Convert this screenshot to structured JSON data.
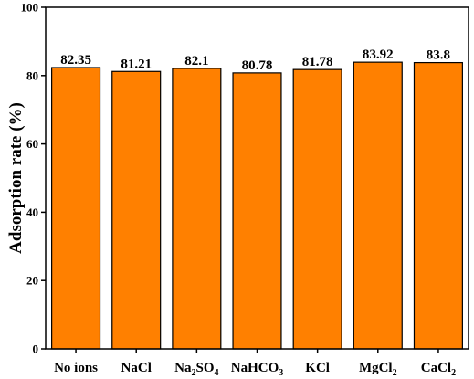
{
  "chart_data": {
    "type": "bar",
    "categories": [
      {
        "base": "No ions",
        "parts": [
          [
            "No ions",
            ""
          ]
        ]
      },
      {
        "base": "NaCl",
        "parts": [
          [
            "NaCl",
            ""
          ]
        ]
      },
      {
        "base": "Na2SO4",
        "parts": [
          [
            "Na",
            ""
          ],
          [
            "2",
            "sub"
          ],
          [
            "SO",
            ""
          ],
          [
            "4",
            "sub"
          ]
        ]
      },
      {
        "base": "NaHCO3",
        "parts": [
          [
            "NaHCO",
            ""
          ],
          [
            "3",
            "sub"
          ]
        ]
      },
      {
        "base": "KCl",
        "parts": [
          [
            "KCl",
            ""
          ]
        ]
      },
      {
        "base": "MgCl2",
        "parts": [
          [
            "MgCl",
            ""
          ],
          [
            "2",
            "sub"
          ]
        ]
      },
      {
        "base": "CaCl2",
        "parts": [
          [
            "CaCl",
            ""
          ],
          [
            "2",
            "sub"
          ]
        ]
      }
    ],
    "values": [
      82.35,
      81.21,
      82.1,
      80.78,
      81.78,
      83.92,
      83.8
    ],
    "value_labels": [
      "82.35",
      "81.21",
      "82.1",
      "80.78",
      "81.78",
      "83.92",
      "83.8"
    ],
    "ylabel": "Adsorption rate (%)",
    "xlabel": "",
    "ylim": [
      0,
      100
    ],
    "yticks": [
      0,
      20,
      40,
      60,
      80,
      100
    ],
    "bar_color": "#ff8000",
    "grid": false
  }
}
